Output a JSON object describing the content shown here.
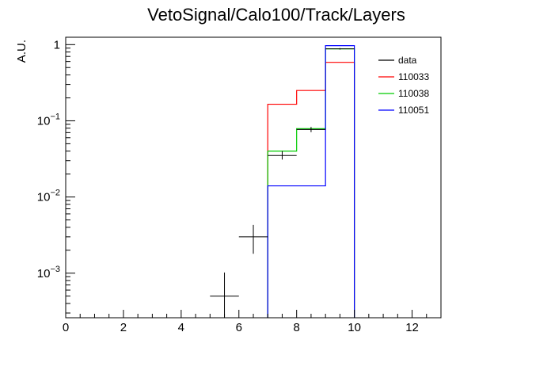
{
  "chart_data": {
    "type": "histogram",
    "title": "VetoSignal/Calo100/Track/Layers",
    "xlabel": "",
    "ylabel": "A.U.",
    "xlim": [
      0,
      13
    ],
    "ylim": [
      0.00026,
      1.25
    ],
    "yscale": "log",
    "grid": false,
    "legend_position": "top-right",
    "x_ticks": [
      0,
      2,
      4,
      6,
      8,
      10,
      12
    ],
    "y_ticks": [
      {
        "value": 0.001,
        "base": "10",
        "exp": "−3"
      },
      {
        "value": 0.01,
        "base": "10",
        "exp": "−2"
      },
      {
        "value": 0.1,
        "base": "10",
        "exp": "−1"
      },
      {
        "value": 1,
        "base": "1",
        "exp": ""
      }
    ],
    "bin_edges": [
      7,
      8,
      9,
      10
    ],
    "series": [
      {
        "name": "110033",
        "color": "#ff0000",
        "style": "step",
        "values": [
          0.165,
          0.25,
          0.585
        ]
      },
      {
        "name": "110038",
        "color": "#00cc00",
        "style": "step",
        "values": [
          0.04,
          0.079,
          0.88
        ]
      },
      {
        "name": "110051",
        "color": "#0000ff",
        "style": "step",
        "values": [
          0.014,
          0.014,
          0.97
        ]
      }
    ],
    "data_points": {
      "name": "data",
      "color": "#000000",
      "points": [
        {
          "x": 5.5,
          "y": 0.0005,
          "x_err": 0.5,
          "y_low": 0.00026,
          "y_high": 0.00102
        },
        {
          "x": 6.5,
          "y": 0.003,
          "x_err": 0.5,
          "y_low": 0.0018,
          "y_high": 0.0043
        },
        {
          "x": 7.5,
          "y": 0.035,
          "x_err": 0.5,
          "y_low": 0.031,
          "y_high": 0.04
        },
        {
          "x": 8.5,
          "y": 0.077,
          "x_err": 0.5,
          "y_low": 0.071,
          "y_high": 0.083
        },
        {
          "x": 9.5,
          "y": 0.88,
          "x_err": 0.5,
          "y_low": 0.86,
          "y_high": 0.9
        }
      ]
    }
  }
}
